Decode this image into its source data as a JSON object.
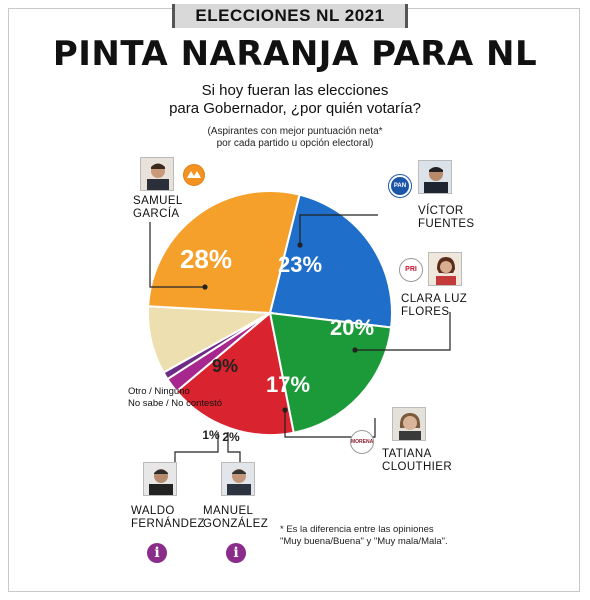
{
  "header": {
    "kicker": "ELECCIONES NL 2021",
    "headline": "PINTA NARANJA PARA NL",
    "question_line1": "Si hoy fueran las elecciones",
    "question_line2": "para Gobernador, ¿por quién votaría?",
    "subnote_line1": "(Aspirantes con mejor puntuación neta*",
    "subnote_line2": "por cada partido u opción electoral)"
  },
  "candidates": {
    "garcia": {
      "line1": "SAMUEL",
      "line2": "GARCÍA"
    },
    "fuentes": {
      "line1": "VÍCTOR",
      "line2": "FUENTES",
      "badge": "PAN"
    },
    "flores": {
      "line1": "CLARA LUZ",
      "line2": "FLORES",
      "badge": "PRI"
    },
    "clouthier": {
      "line1": "TATIANA",
      "line2": "CLOUTHIER",
      "badge": "MORENA"
    },
    "fernandez": {
      "line1": "WALDO",
      "line2": "FERNÁNDEZ"
    },
    "gonzalez": {
      "line1": "MANUEL",
      "line2": "GONZÁLEZ"
    },
    "otro": {
      "line1": "Otro / Ninguno",
      "line2": "No sabe / No contestó"
    }
  },
  "info_glyph": "i",
  "footnote": {
    "line1": "* Es la diferencia entre las opiniones",
    "line2": "\"Muy buena/Buena\" y \"Muy mala/Mala\"."
  },
  "chart_data": {
    "type": "pie",
    "start_angle_deg": -76,
    "slices": [
      {
        "key": "fuentes",
        "label": "23%",
        "value": 23,
        "color": "#1f6fca"
      },
      {
        "key": "flores",
        "label": "20%",
        "value": 20,
        "color": "#1c9a3a"
      },
      {
        "key": "clouthier",
        "label": "17%",
        "value": 17,
        "color": "#d9232e"
      },
      {
        "key": "gonzalez",
        "label": "2%",
        "value": 2,
        "color": "#a7278f"
      },
      {
        "key": "fernandez",
        "label": "1%",
        "value": 1,
        "color": "#6e2b86"
      },
      {
        "key": "otro",
        "label": "9%",
        "value": 9,
        "color": "#eedfb1"
      },
      {
        "key": "garcia",
        "label": "28%",
        "value": 28,
        "color": "#f6a02c"
      }
    ]
  }
}
